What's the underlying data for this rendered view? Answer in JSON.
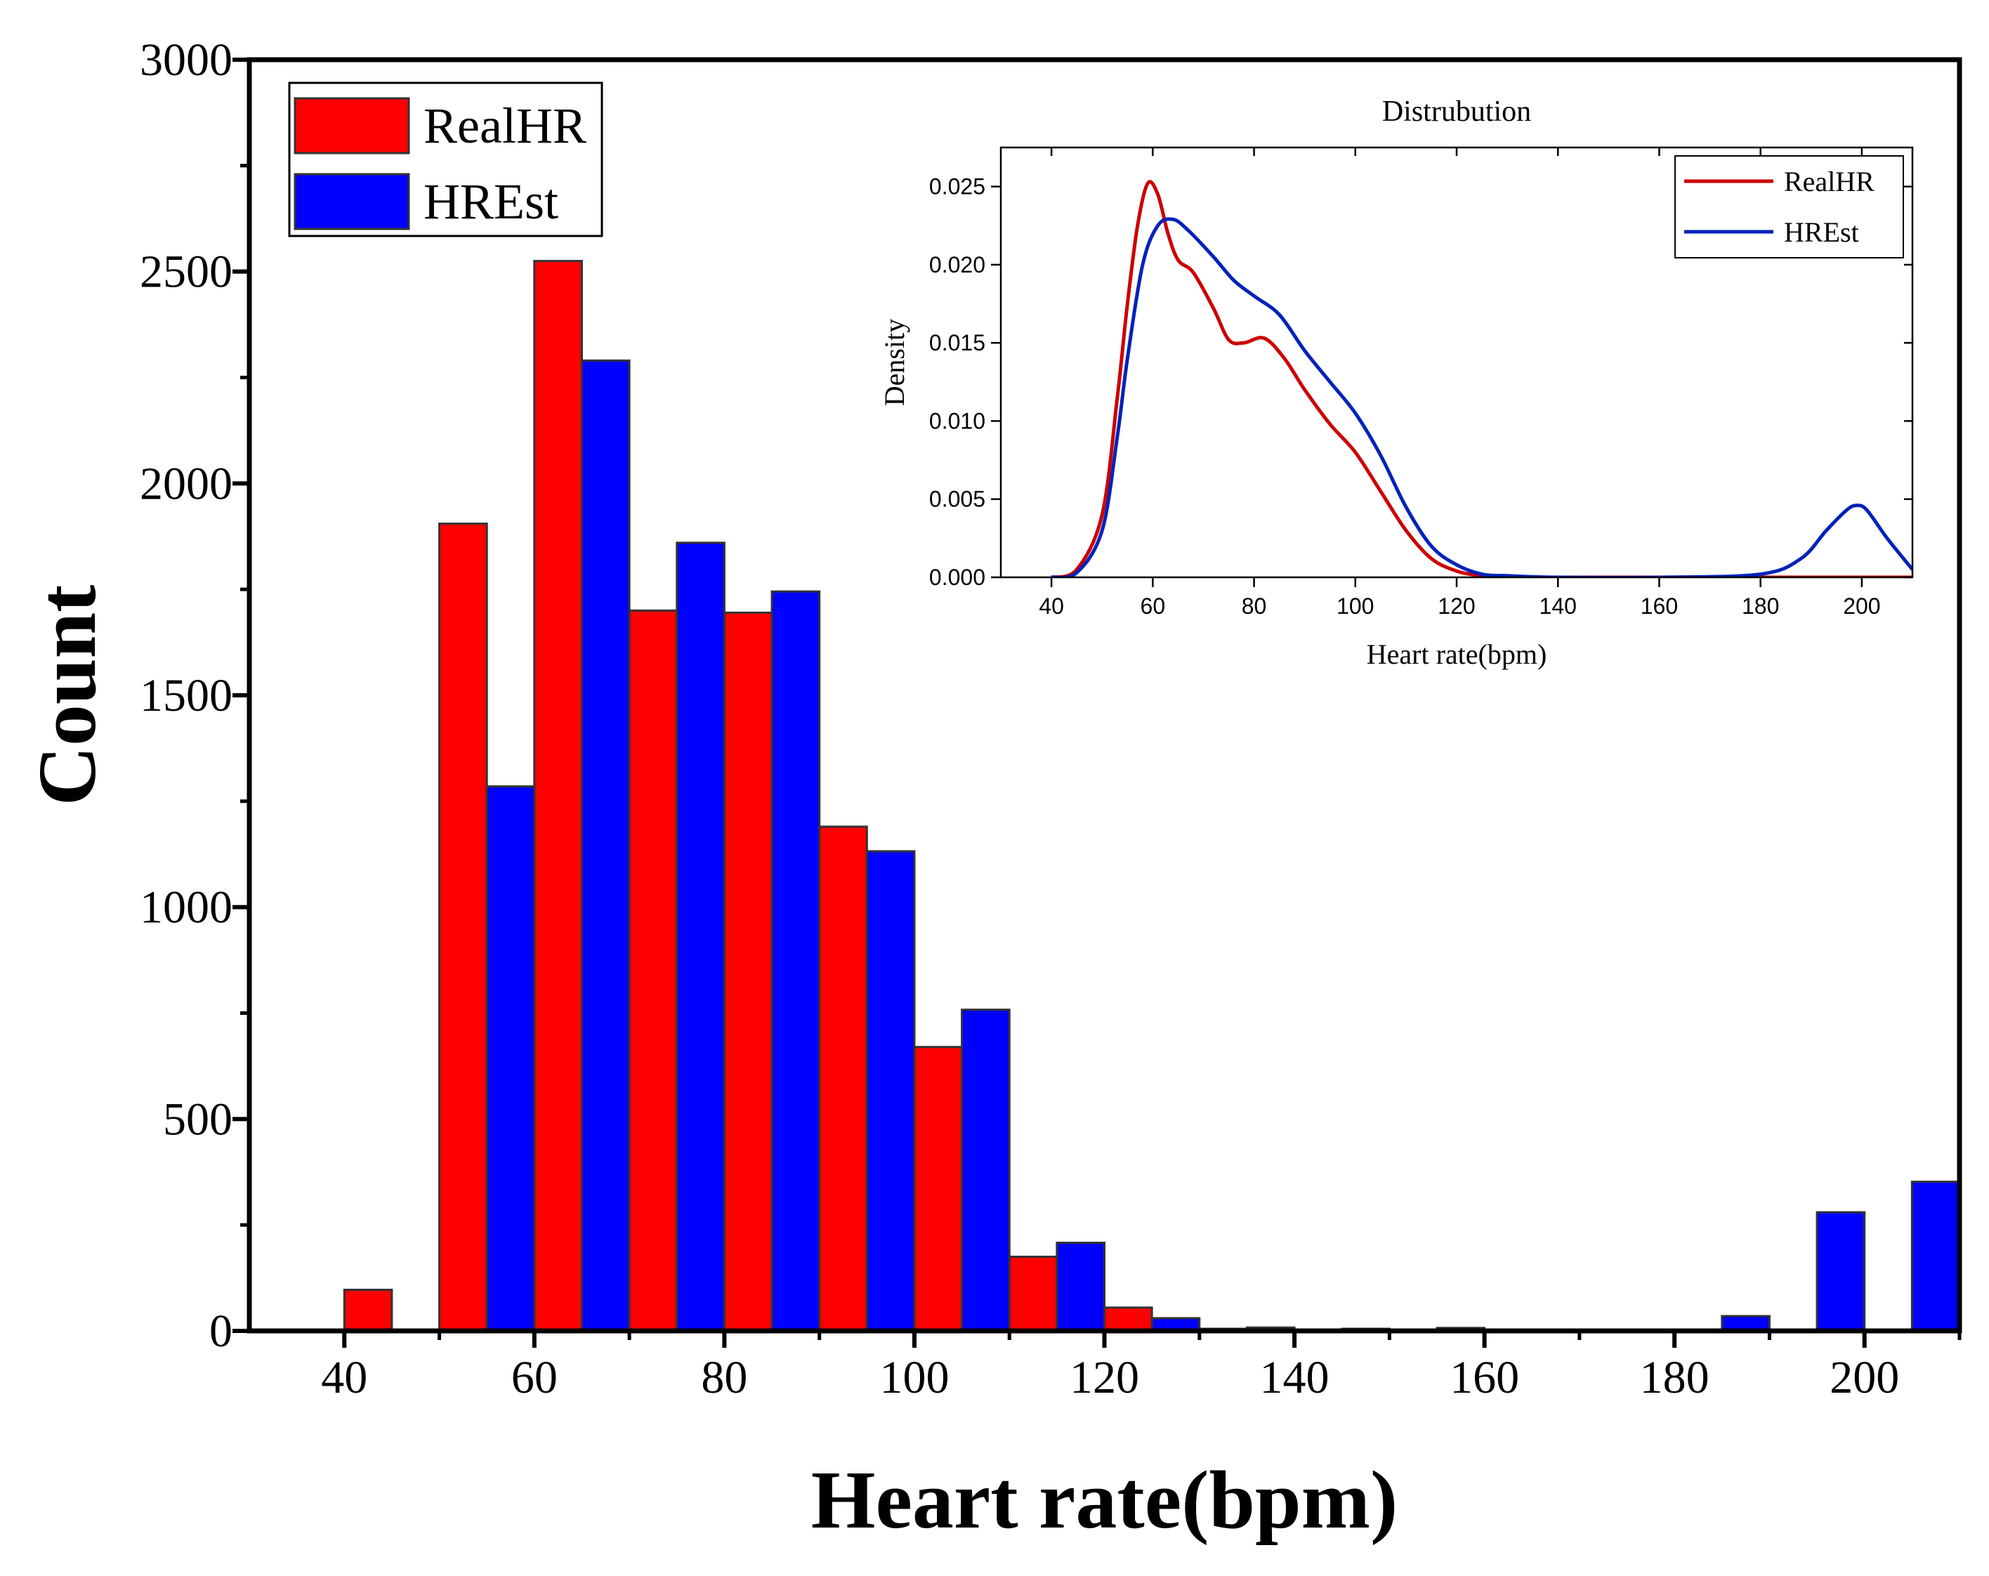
{
  "chart_data": [
    {
      "type": "bar",
      "title": "",
      "xlabel": "Heart rate(bpm)",
      "ylabel": "Count",
      "xlim": [
        30,
        210
      ],
      "ylim": [
        0,
        3000
      ],
      "xticks": [
        40,
        60,
        80,
        100,
        120,
        140,
        160,
        180,
        200
      ],
      "yticks": [
        0,
        500,
        1000,
        1500,
        2000,
        2500,
        3000
      ],
      "bin_width": 10,
      "bin_starts": [
        40,
        50,
        60,
        70,
        80,
        90,
        100,
        110,
        120,
        130,
        140,
        150,
        160,
        170,
        180,
        190,
        200
      ],
      "series": [
        {
          "name": "RealHR",
          "color": "#ff0000",
          "values": [
            97,
            1905,
            2525,
            1700,
            1695,
            1190,
            670,
            175,
            55,
            5,
            3,
            2,
            2,
            0,
            0,
            0,
            0
          ]
        },
        {
          "name": "HREst",
          "color": "#0000ff",
          "values": [
            0,
            1285,
            2290,
            1860,
            1745,
            1132,
            758,
            208,
            30,
            8,
            5,
            7,
            0,
            0,
            35,
            280,
            352
          ]
        }
      ],
      "legend": "top-left"
    },
    {
      "type": "line",
      "title": "Distrubution",
      "xlabel": "Heart rate(bpm)",
      "ylabel": "Density",
      "xlim": [
        30,
        210
      ],
      "ylim": [
        0,
        0.0275
      ],
      "xticks": [
        "40",
        "60",
        "80",
        "100",
        "120",
        "140",
        "160",
        "180",
        "200"
      ],
      "yticks": [
        "0.000",
        "0.005",
        "0.010",
        "0.015",
        "0.020",
        "0.025"
      ],
      "series": [
        {
          "name": "RealHR",
          "color": "#cc0000",
          "x": [
            40,
            45,
            50,
            53,
            55,
            57,
            59,
            61,
            63,
            65,
            68,
            72,
            75,
            78,
            82,
            86,
            90,
            95,
            100,
            105,
            110,
            115,
            120,
            125,
            130,
            140,
            160,
            180,
            200,
            210
          ],
          "y": [
            0,
            0.0005,
            0.004,
            0.0115,
            0.0175,
            0.0225,
            0.0252,
            0.0245,
            0.022,
            0.0203,
            0.0195,
            0.0172,
            0.0152,
            0.015,
            0.0153,
            0.014,
            0.012,
            0.0098,
            0.008,
            0.0055,
            0.003,
            0.0012,
            0.0004,
            0.0001,
            0,
            0,
            0,
            0,
            0,
            0
          ]
        },
        {
          "name": "HREst",
          "color": "#0022bb",
          "x": [
            40,
            45,
            50,
            53,
            55,
            58,
            61,
            64,
            67,
            72,
            76,
            80,
            85,
            90,
            95,
            100,
            105,
            110,
            115,
            120,
            125,
            130,
            140,
            160,
            180,
            188,
            193,
            197,
            199,
            201,
            205,
            210
          ],
          "y": [
            0,
            0.0003,
            0.003,
            0.009,
            0.014,
            0.02,
            0.0225,
            0.0229,
            0.0222,
            0.0205,
            0.019,
            0.018,
            0.0168,
            0.0145,
            0.0125,
            0.0105,
            0.0078,
            0.0045,
            0.002,
            0.0008,
            0.0002,
            0.0001,
            0,
            0,
            0.0002,
            0.0012,
            0.003,
            0.0043,
            0.0046,
            0.0043,
            0.0025,
            0.0005
          ]
        }
      ],
      "legend": "top-right"
    }
  ]
}
